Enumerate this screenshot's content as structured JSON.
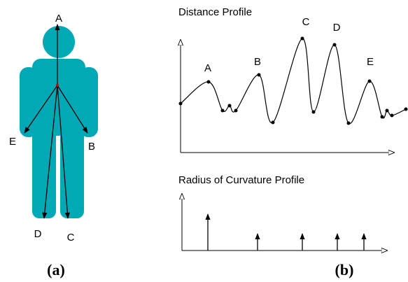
{
  "panel_a": {
    "labels": [
      "A",
      "B",
      "C",
      "D",
      "E"
    ],
    "caption": "(a)"
  },
  "panel_b": {
    "distance_title": "Distance Profile",
    "peak_labels": [
      "A",
      "B",
      "C",
      "D",
      "E"
    ],
    "curvature_title": "Radius of Curvature Profile",
    "caption": "(b)"
  }
}
